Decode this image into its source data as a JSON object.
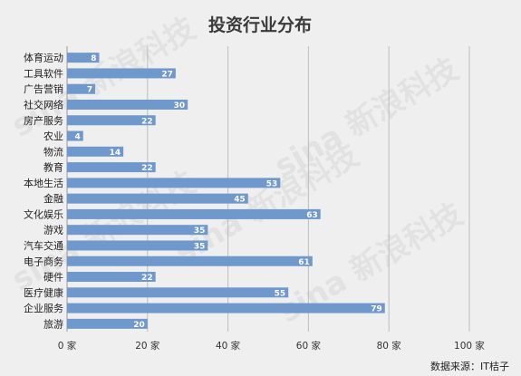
{
  "chart_data": {
    "type": "bar",
    "orientation": "horizontal",
    "title": "投资行业分布",
    "categories": [
      "体育运动",
      "工具软件",
      "广告营销",
      "社交网络",
      "房产服务",
      "农业",
      "物流",
      "教育",
      "本地生活",
      "金融",
      "文化娱乐",
      "游戏",
      "汽车交通",
      "电子商务",
      "硬件",
      "医疗健康",
      "企业服务",
      "旅游"
    ],
    "values": [
      8,
      27,
      7,
      30,
      22,
      4,
      14,
      22,
      53,
      45,
      63,
      35,
      35,
      61,
      22,
      55,
      79,
      20
    ],
    "xlim": [
      0,
      100
    ],
    "xticks": [
      0,
      20,
      40,
      60,
      80,
      100
    ],
    "tick_labels": [
      "0 家",
      "20 家",
      "40 家",
      "60 家",
      "80 家",
      "100 家"
    ],
    "grid": true,
    "bar_color": "#6f98cc",
    "source": "数据来源：IT桔子",
    "watermark": "sina 新浪科技"
  }
}
